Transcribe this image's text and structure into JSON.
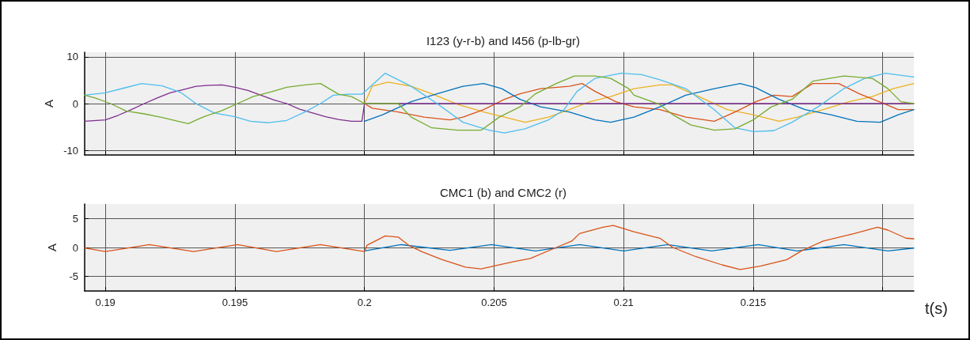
{
  "chart_data": [
    {
      "type": "line",
      "title": "I123 (y-r-b) and I456 (p-lb-gr)",
      "ylabel": "A",
      "xlim": [
        0.1892,
        0.2212
      ],
      "ylim": [
        -11,
        11
      ],
      "xticks": [
        0.19,
        0.195,
        0.2,
        0.205,
        0.21,
        0.215,
        {
          "value": 0.22,
          "label": null
        }
      ],
      "yticks": [
        -10,
        0,
        10
      ],
      "grid": true,
      "tick_labels": "y",
      "series": [
        {
          "color": "#edb120",
          "x": [
            0.2,
            0.2003,
            0.2009,
            0.2018,
            0.2026,
            0.2036,
            0.2046,
            0.2054,
            0.2062,
            0.2071,
            0.2079,
            0.2087,
            0.2095,
            0.2104,
            0.2114,
            0.2119,
            0.2129,
            0.214,
            0.215,
            0.216,
            0.2167,
            0.2177,
            0.2187,
            0.2196,
            0.2204,
            0.2212
          ],
          "values": [
            0,
            3.7,
            4.6,
            3.7,
            2.1,
            -0.2,
            -1.8,
            -2.9,
            -4,
            -2.9,
            -1.3,
            0.4,
            1.5,
            3.2,
            4,
            4,
            1.5,
            -1.3,
            -2.4,
            -3.8,
            -2.9,
            -1.3,
            0.4,
            1.5,
            3.2,
            4.3
          ]
        },
        {
          "color": "#d95319",
          "x": [
            0.2,
            0.2003,
            0.2013,
            0.2023,
            0.2033,
            0.2038,
            0.2046,
            0.2054,
            0.206,
            0.2068,
            0.2079,
            0.2084,
            0.2089,
            0.2097,
            0.2104,
            0.2114,
            0.2124,
            0.2135,
            0.2143,
            0.2151,
            0.2158,
            0.2165,
            0.2173,
            0.2183,
            0.2191,
            0.22,
            0.2206,
            0.2212
          ],
          "values": [
            0,
            -1,
            -1.8,
            -2.9,
            -3.5,
            -2.9,
            -1.3,
            0.9,
            2.1,
            3.2,
            3.7,
            4.3,
            2.6,
            0.4,
            -0.7,
            -1.3,
            -2.9,
            -3.8,
            -1.8,
            0.4,
            1.8,
            1.5,
            4.3,
            4.3,
            2.1,
            0.1,
            -1.3,
            -1.3
          ]
        },
        {
          "color": "#0072bd",
          "x": [
            0.2,
            0.2007,
            0.2018,
            0.2028,
            0.2038,
            0.2046,
            0.2053,
            0.206,
            0.2068,
            0.2079,
            0.2089,
            0.2095,
            0.2104,
            0.2114,
            0.2124,
            0.2135,
            0.2145,
            0.2151,
            0.216,
            0.217,
            0.218,
            0.219,
            0.2199,
            0.2206,
            0.2212
          ],
          "values": [
            -3.8,
            -2.4,
            0.4,
            2.1,
            3.7,
            4.3,
            3.2,
            0.9,
            -0.7,
            -1.8,
            -3.5,
            -4,
            -2.9,
            -0.7,
            1.8,
            3.2,
            4.3,
            3.4,
            0.9,
            -1.3,
            -2.4,
            -3.8,
            -4,
            -2.4,
            -1.3
          ]
        },
        {
          "color": "#7e2f8e",
          "x": [
            0.1892,
            0.19,
            0.1905,
            0.191,
            0.1915,
            0.192,
            0.1925,
            0.193,
            0.1935,
            0.194,
            0.1945,
            0.195,
            0.1955,
            0.196,
            0.1965,
            0.197,
            0.1975,
            0.198,
            0.1985,
            0.199,
            0.1995,
            0.1999,
            0.2,
            0.2212
          ],
          "values": [
            -3.8,
            -3.5,
            -2.5,
            -1.3,
            0,
            1.2,
            2.3,
            3,
            3.7,
            3.9,
            4,
            3.5,
            2.8,
            1.8,
            0.8,
            0,
            -1.2,
            -2,
            -2.8,
            -3.4,
            -3.8,
            -3.8,
            0,
            0
          ]
        },
        {
          "color": "#4dbeee",
          "x": [
            0.1892,
            0.19,
            0.1907,
            0.1914,
            0.1922,
            0.1929,
            0.1935,
            0.1942,
            0.195,
            0.1956,
            0.1963,
            0.197,
            0.1977,
            0.1983,
            0.1988,
            0.1994,
            0.1999,
            0.2008,
            0.2018,
            0.2028,
            0.2038,
            0.2048,
            0.2054,
            0.2062,
            0.2071,
            0.2077,
            0.2082,
            0.2089,
            0.2099,
            0.2107,
            0.2114,
            0.2124,
            0.2135,
            0.2143,
            0.215,
            0.2158,
            0.2165,
            0.2175,
            0.2185,
            0.2193,
            0.2201,
            0.2212
          ],
          "values": [
            1.8,
            2.3,
            3.3,
            4.3,
            3.8,
            2.4,
            0,
            -2,
            -2.8,
            -3.8,
            -4.1,
            -3.6,
            -1.8,
            0,
            1.8,
            2,
            2,
            6.5,
            3.7,
            0,
            -4,
            -5.7,
            -6.3,
            -5.4,
            -3.5,
            -1.3,
            2.6,
            5.4,
            6.5,
            6.2,
            5.1,
            3.2,
            -1.3,
            -5.2,
            -6,
            -5.8,
            -4,
            -0.7,
            3.2,
            5.4,
            6.5,
            5.7
          ]
        },
        {
          "color": "#77ac30",
          "x": [
            0.1892,
            0.1896,
            0.1902,
            0.1908,
            0.1915,
            0.1922,
            0.1928,
            0.1932,
            0.1938,
            0.1945,
            0.1951,
            0.1957,
            0.1964,
            0.197,
            0.1977,
            0.1983,
            0.199,
            0.1995,
            0.2,
            0.2013,
            0.2018,
            0.2026,
            0.2036,
            0.2045,
            0.2052,
            0.206,
            0.2066,
            0.2074,
            0.2081,
            0.2089,
            0.2095,
            0.2102,
            0.2104,
            0.2114,
            0.2119,
            0.2126,
            0.2135,
            0.2143,
            0.215,
            0.2157,
            0.2165,
            0.2173,
            0.2185,
            0.2196,
            0.2202,
            0.2207,
            0.2212
          ],
          "values": [
            1.8,
            1.2,
            0,
            -1.6,
            -2.2,
            -3,
            -3.8,
            -4.3,
            -2.8,
            -1.5,
            0,
            1.5,
            2.5,
            3.5,
            4,
            4.3,
            2,
            1.5,
            0,
            0,
            -2.9,
            -5.2,
            -5.7,
            -5.7,
            -2.9,
            -0.7,
            2.1,
            4.3,
            5.9,
            5.9,
            5.4,
            3.2,
            1.8,
            -0.2,
            -2.4,
            -4.6,
            -5.7,
            -5.4,
            -3.5,
            -0.7,
            0.9,
            4.8,
            5.9,
            5.4,
            3.2,
            0.4,
            0
          ]
        }
      ]
    },
    {
      "type": "line",
      "title": "CMC1 (b) and CMC2 (r)",
      "ylabel": "A",
      "xlabel": "t(s)",
      "xlim": [
        0.1892,
        0.2212
      ],
      "ylim": [
        -7.5,
        7.5
      ],
      "xticks": [
        0.19,
        0.195,
        0.2,
        0.205,
        0.21,
        0.215,
        {
          "value": 0.22,
          "label": null
        }
      ],
      "yticks": [
        -5,
        0,
        5
      ],
      "grid": true,
      "series": [
        {
          "color": "#0072bd",
          "x": [
            0.2,
            0.2014,
            0.2033,
            0.2049,
            0.2066,
            0.2083,
            0.21,
            0.2117,
            0.2134,
            0.2152,
            0.2167,
            0.2185,
            0.2202,
            0.2212
          ],
          "values": [
            -0.6,
            0.5,
            -0.5,
            0.5,
            -0.6,
            0.5,
            -0.6,
            0.5,
            -0.6,
            0.5,
            -0.6,
            0.5,
            -0.6,
            -0.1
          ]
        },
        {
          "color": "#d95319",
          "x": [
            0.1892,
            0.19,
            0.1917,
            0.1934,
            0.1951,
            0.1966,
            0.1983,
            0.2,
            0.2001,
            0.2008,
            0.2013,
            0.2017,
            0.2022,
            0.203,
            0.2039,
            0.2045,
            0.205,
            0.2058,
            0.2064,
            0.2074,
            0.208,
            0.2083,
            0.2092,
            0.2096,
            0.2104,
            0.2114,
            0.2119,
            0.2128,
            0.2138,
            0.2145,
            0.2153,
            0.2163,
            0.2169,
            0.2177,
            0.2189,
            0.2198,
            0.2202,
            0.2209,
            0.2212
          ],
          "values": [
            -0.1,
            -0.7,
            0.5,
            -0.7,
            0.5,
            -0.7,
            0.5,
            -0.7,
            0.4,
            2,
            1.8,
            0.4,
            -0.7,
            -2.1,
            -3.4,
            -3.7,
            -3.2,
            -2.4,
            -1.9,
            0,
            1.1,
            2.4,
            3.5,
            3.8,
            2.7,
            1.6,
            0,
            -1.6,
            -3,
            -3.8,
            -3.2,
            -2.1,
            -0.5,
            1.1,
            2.4,
            3.5,
            3,
            1.6,
            1.5
          ]
        }
      ]
    }
  ]
}
